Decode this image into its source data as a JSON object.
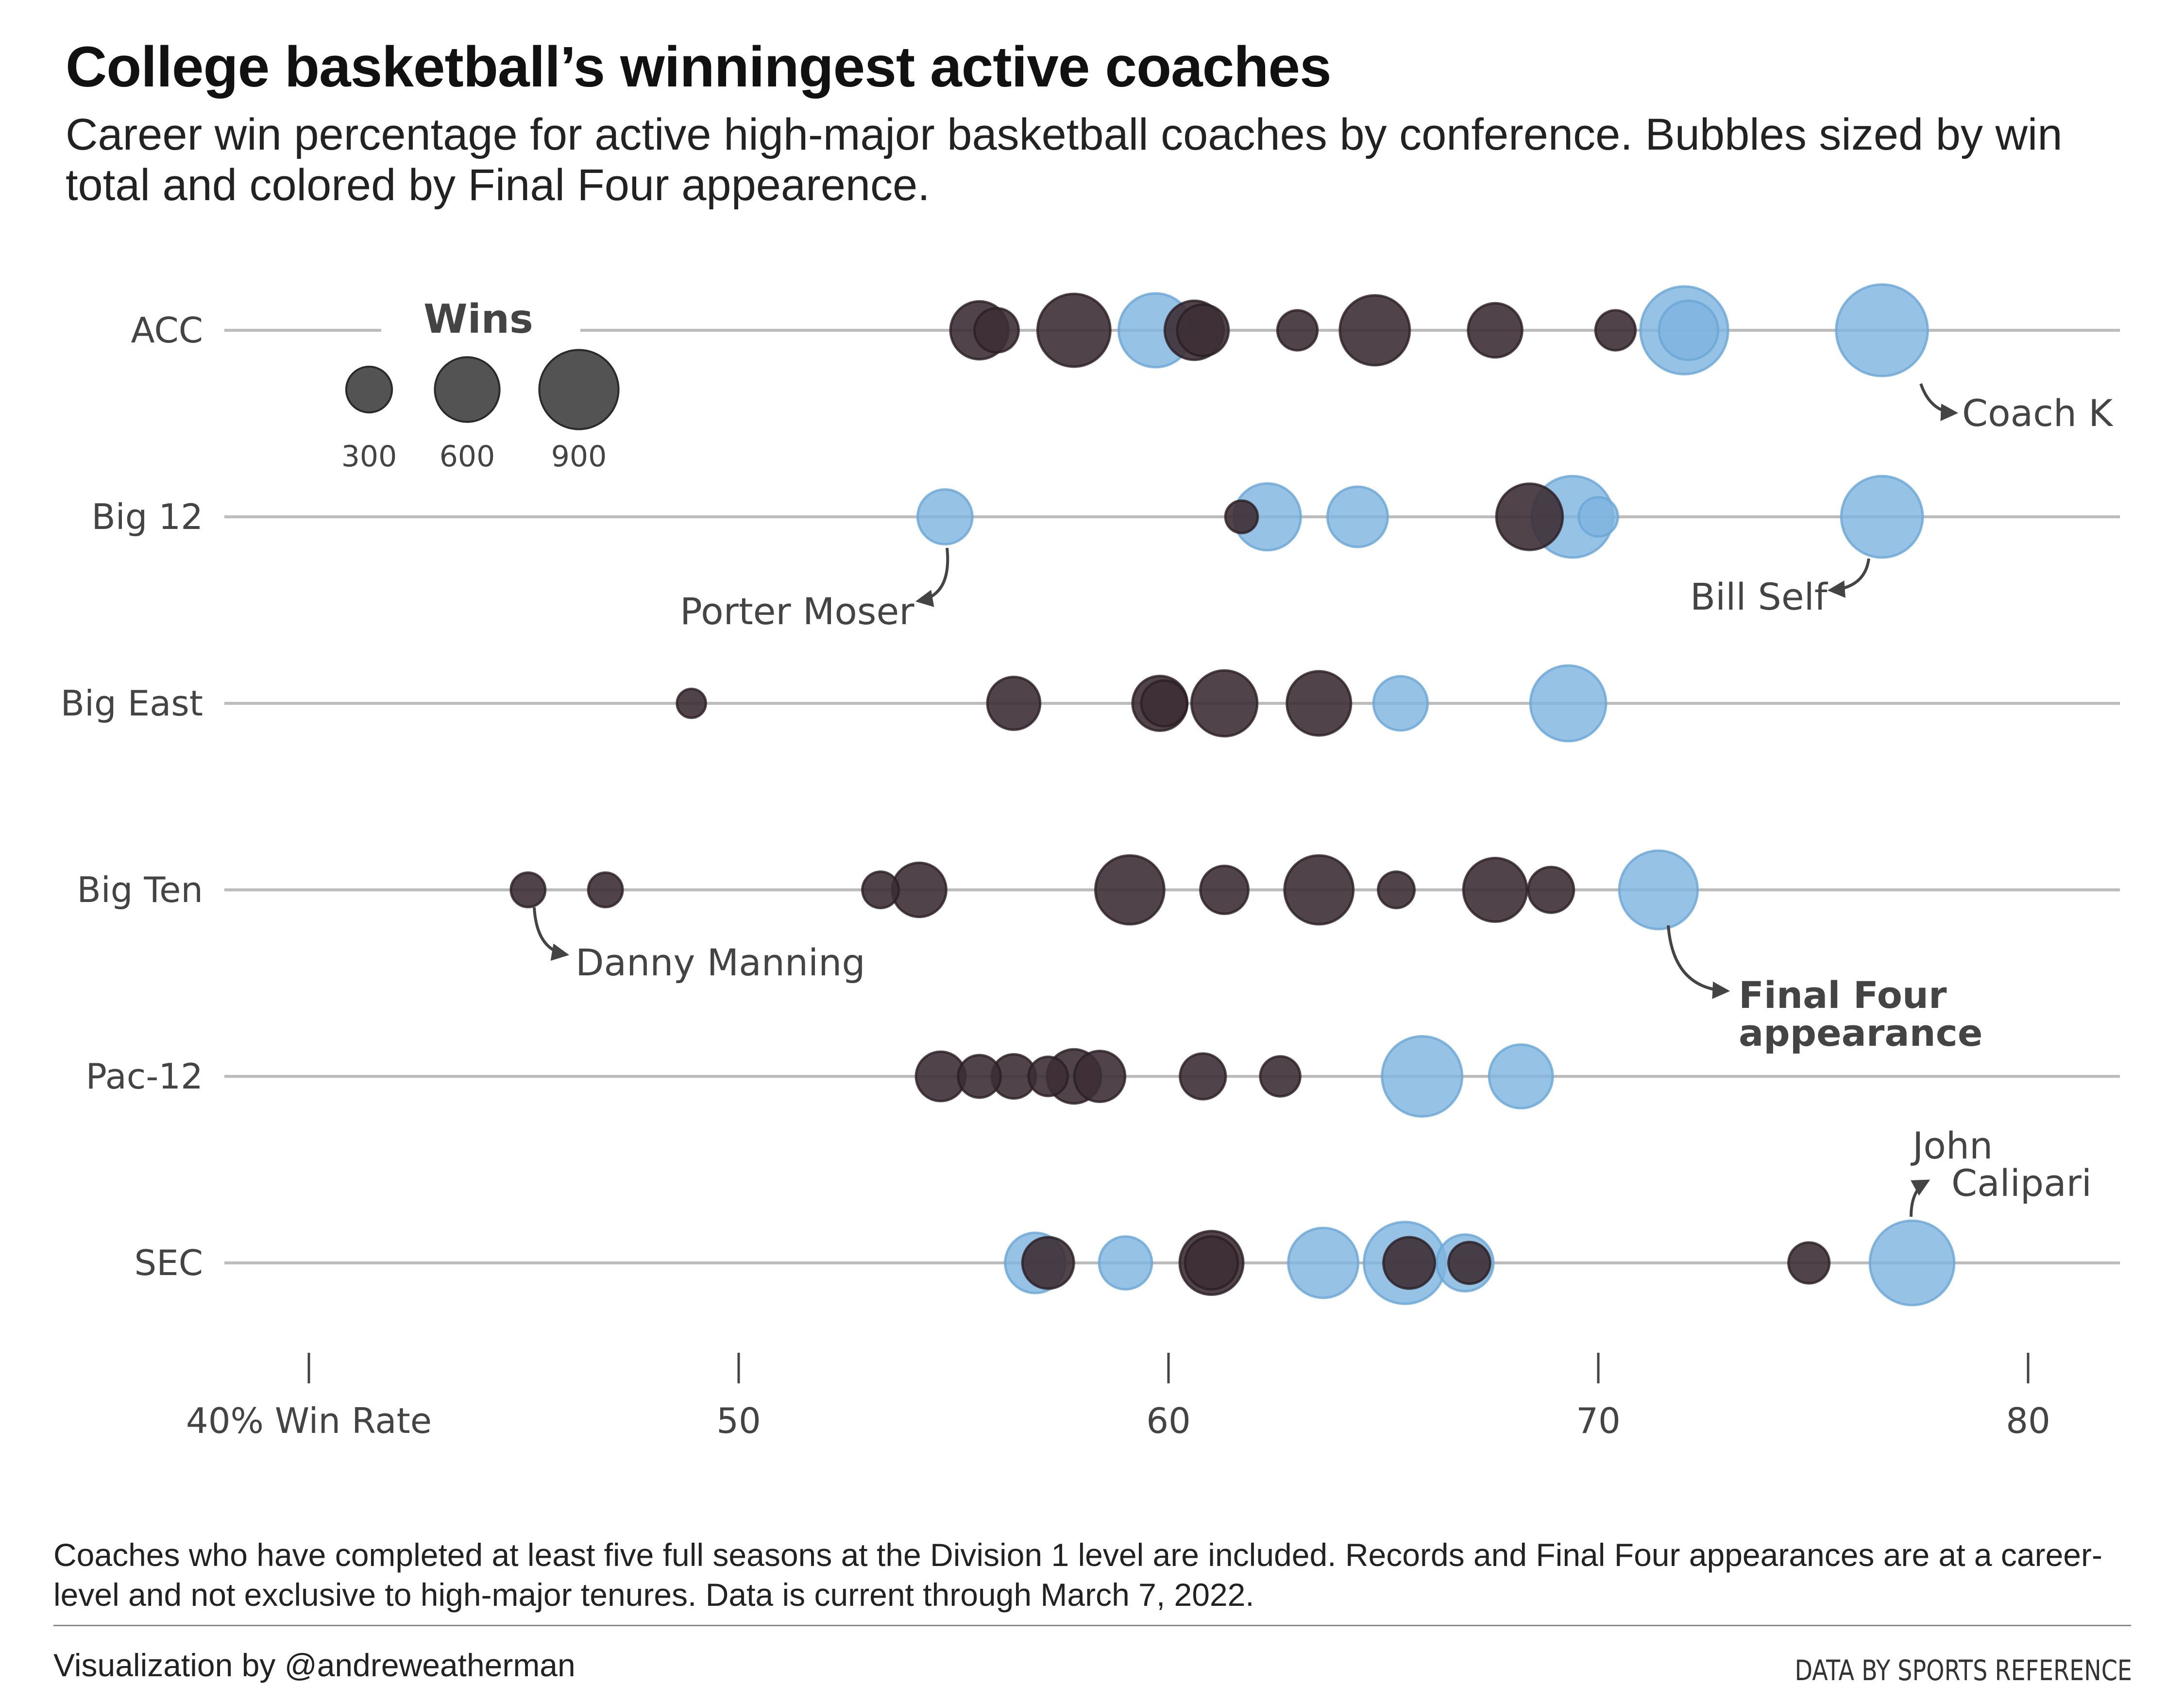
{
  "chart_data": {
    "type": "scatter",
    "title": "College basketball’s winningest active coaches",
    "subtitle": "Career win percentage for active high-major basketball coaches by conference. Bubbles sized by win total and colored by Final Four appearence.",
    "xlabel": "",
    "ylabel": "",
    "xlim": [
      38,
      82
    ],
    "x_ticks": [
      {
        "value": 40,
        "label": "40% Win Rate"
      },
      {
        "value": 50,
        "label": "50"
      },
      {
        "value": 60,
        "label": "60"
      },
      {
        "value": 70,
        "label": "70"
      },
      {
        "value": 80,
        "label": "80"
      }
    ],
    "categories": [
      "ACC",
      "Big 12",
      "Big East",
      "Big Ten",
      "Pac-12",
      "SEC"
    ],
    "colors": {
      "final_four": "#7fb5df",
      "no_final_four": "#3d2f35",
      "grid": "#bcbcbc",
      "legend_bubble": "#444444"
    },
    "size_legend": {
      "title": "Wins",
      "values": [
        300,
        600,
        900
      ],
      "labels": [
        "300",
        "600",
        "900"
      ]
    },
    "series": [
      {
        "conference": "ACC",
        "points": [
          {
            "win_pct": 55.6,
            "wins": 480,
            "final_four": false
          },
          {
            "win_pct": 56.0,
            "wins": 280,
            "final_four": false
          },
          {
            "win_pct": 57.8,
            "wins": 760,
            "final_four": false
          },
          {
            "win_pct": 59.7,
            "wins": 780,
            "final_four": true
          },
          {
            "win_pct": 60.6,
            "wins": 500,
            "final_four": false
          },
          {
            "win_pct": 60.8,
            "wins": 380,
            "final_four": false
          },
          {
            "win_pct": 63.0,
            "wins": 230,
            "final_four": false
          },
          {
            "win_pct": 64.8,
            "wins": 700,
            "final_four": false
          },
          {
            "win_pct": 67.6,
            "wins": 420,
            "final_four": false
          },
          {
            "win_pct": 70.4,
            "wins": 230,
            "final_four": false
          },
          {
            "win_pct": 72.0,
            "wins": 1100,
            "final_four": true
          },
          {
            "win_pct": 72.1,
            "wins": 500,
            "final_four": true
          },
          {
            "win_pct": 76.6,
            "wins": 1200,
            "final_four": true
          }
        ]
      },
      {
        "conference": "Big 12",
        "points": [
          {
            "win_pct": 54.8,
            "wins": 430,
            "final_four": true
          },
          {
            "win_pct": 61.7,
            "wins": 150,
            "final_four": false
          },
          {
            "win_pct": 62.3,
            "wins": 640,
            "final_four": true
          },
          {
            "win_pct": 64.4,
            "wins": 520,
            "final_four": true
          },
          {
            "win_pct": 68.4,
            "wins": 630,
            "final_four": false
          },
          {
            "win_pct": 69.4,
            "wins": 950,
            "final_four": true
          },
          {
            "win_pct": 70.0,
            "wins": 220,
            "final_four": true
          },
          {
            "win_pct": 76.6,
            "wins": 950,
            "final_four": true
          }
        ]
      },
      {
        "conference": "Big East",
        "points": [
          {
            "win_pct": 48.9,
            "wins": 120,
            "final_four": false
          },
          {
            "win_pct": 56.4,
            "wins": 400,
            "final_four": false
          },
          {
            "win_pct": 59.8,
            "wins": 430,
            "final_four": false
          },
          {
            "win_pct": 59.9,
            "wins": 300,
            "final_four": false
          },
          {
            "win_pct": 61.3,
            "wins": 620,
            "final_four": false
          },
          {
            "win_pct": 63.5,
            "wins": 590,
            "final_four": false
          },
          {
            "win_pct": 65.4,
            "wins": 420,
            "final_four": true
          },
          {
            "win_pct": 69.3,
            "wins": 820,
            "final_four": true
          }
        ]
      },
      {
        "conference": "Big Ten",
        "points": [
          {
            "win_pct": 45.1,
            "wins": 170,
            "final_four": false
          },
          {
            "win_pct": 46.9,
            "wins": 170,
            "final_four": false
          },
          {
            "win_pct": 53.3,
            "wins": 190,
            "final_four": false
          },
          {
            "win_pct": 54.2,
            "wins": 420,
            "final_four": false
          },
          {
            "win_pct": 59.1,
            "wins": 680,
            "final_four": false
          },
          {
            "win_pct": 61.3,
            "wins": 330,
            "final_four": false
          },
          {
            "win_pct": 63.5,
            "wins": 680,
            "final_four": false
          },
          {
            "win_pct": 65.3,
            "wins": 190,
            "final_four": false
          },
          {
            "win_pct": 67.6,
            "wins": 580,
            "final_four": false
          },
          {
            "win_pct": 68.9,
            "wins": 300,
            "final_four": false
          },
          {
            "win_pct": 71.4,
            "wins": 880,
            "final_four": true
          }
        ]
      },
      {
        "conference": "Pac-12",
        "points": [
          {
            "win_pct": 54.7,
            "wins": 350,
            "final_four": false
          },
          {
            "win_pct": 55.6,
            "wins": 260,
            "final_four": false
          },
          {
            "win_pct": 56.4,
            "wins": 280,
            "final_four": false
          },
          {
            "win_pct": 57.2,
            "wins": 220,
            "final_four": false
          },
          {
            "win_pct": 57.8,
            "wins": 420,
            "final_four": false
          },
          {
            "win_pct": 58.4,
            "wins": 370,
            "final_four": false
          },
          {
            "win_pct": 60.8,
            "wins": 300,
            "final_four": false
          },
          {
            "win_pct": 62.6,
            "wins": 230,
            "final_four": false
          },
          {
            "win_pct": 65.9,
            "wins": 920,
            "final_four": true
          },
          {
            "win_pct": 68.2,
            "wins": 580,
            "final_four": true
          }
        ]
      },
      {
        "conference": "SEC",
        "points": [
          {
            "win_pct": 56.9,
            "wins": 520,
            "final_four": true
          },
          {
            "win_pct": 57.2,
            "wins": 380,
            "final_four": false
          },
          {
            "win_pct": 59.0,
            "wins": 400,
            "final_four": true
          },
          {
            "win_pct": 61.0,
            "wins": 580,
            "final_four": false
          },
          {
            "win_pct": 61.0,
            "wins": 400,
            "final_four": false
          },
          {
            "win_pct": 63.6,
            "wins": 700,
            "final_four": true
          },
          {
            "win_pct": 65.5,
            "wins": 960,
            "final_four": true
          },
          {
            "win_pct": 65.6,
            "wins": 380,
            "final_four": false
          },
          {
            "win_pct": 66.9,
            "wins": 460,
            "final_four": true
          },
          {
            "win_pct": 67.0,
            "wins": 250,
            "final_four": false
          },
          {
            "win_pct": 74.9,
            "wins": 240,
            "final_four": false
          },
          {
            "win_pct": 77.3,
            "wins": 1020,
            "final_four": true
          }
        ]
      }
    ],
    "annotations": [
      {
        "text": "Coach K",
        "conference": "ACC",
        "win_pct": 76.6
      },
      {
        "text": "Porter Moser",
        "conference": "Big 12",
        "win_pct": 54.8
      },
      {
        "text": "Bill Self",
        "conference": "Big 12",
        "win_pct": 76.6
      },
      {
        "text": "Danny Manning",
        "conference": "Big Ten",
        "win_pct": 45.1
      },
      {
        "text": "Final Four appearance",
        "conference": "Big Ten",
        "win_pct": 71.4
      },
      {
        "text": "John Calipari",
        "conference": "SEC",
        "win_pct": 77.3
      }
    ]
  },
  "footer": {
    "note": "Coaches who have completed at least five full seasons at the Division 1 level are included. Records and Final Four appearances are at a career-level and not exclusive to high-major tenures. Data is current through March 7, 2022.",
    "credit": "Visualization by @andreweatherman",
    "source": "DATA BY SPORTS REFERENCE"
  }
}
